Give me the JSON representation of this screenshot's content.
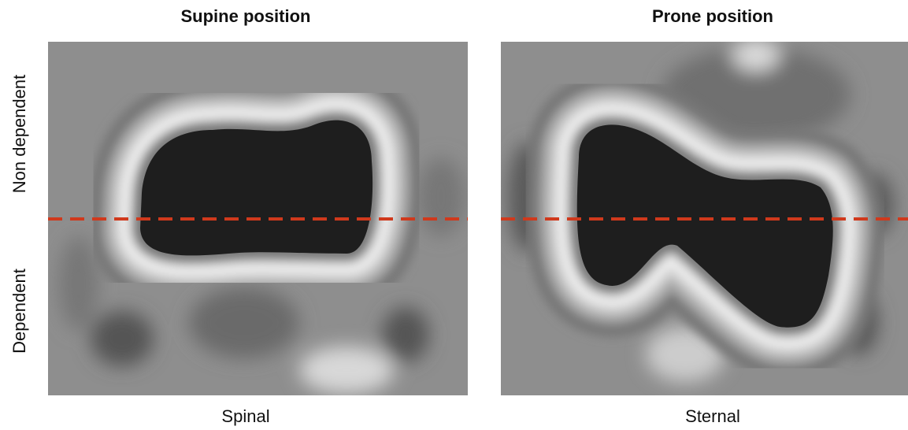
{
  "panels": [
    {
      "title": "Supine position",
      "bottom_label": "Spinal"
    },
    {
      "title": "Prone position",
      "bottom_label": "Sternal"
    }
  ],
  "y_labels": {
    "top": "Non dependent",
    "bottom": "Dependent"
  }
}
